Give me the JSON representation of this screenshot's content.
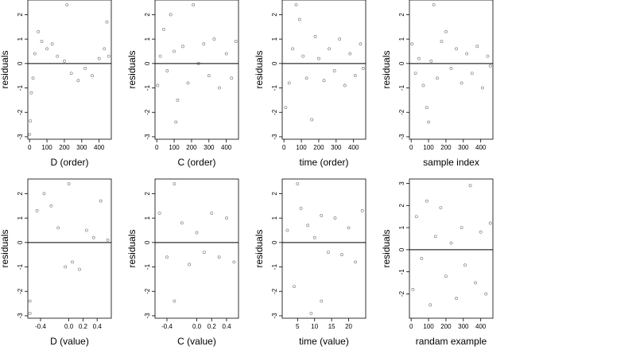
{
  "figure": {
    "background": "#ffffff",
    "point_color": "#555555",
    "line_color": "#000000"
  },
  "chart_data": [
    {
      "type": "scatter",
      "xlabel": "D (order)",
      "ylabel": "residuals",
      "xlim": [
        -10,
        470
      ],
      "ylim": [
        -3.1,
        2.6
      ],
      "xticks": [
        0,
        100,
        200,
        300,
        400
      ],
      "xtick_labels": [
        "0",
        "100",
        "200",
        "300",
        "400"
      ],
      "yticks": [
        -3,
        -2,
        -1,
        0,
        1,
        2
      ],
      "ytick_labels": [
        "-3",
        "-2",
        "-1",
        "0",
        "1",
        "2"
      ],
      "hline": 0,
      "points_summary": {
        "n": 460,
        "x_range": [
          0,
          460
        ],
        "pattern": "ordered residuals: low values near start, mostly 0.0 to 1.2 from 50–200, -1.0 to 0.3 from 200–380, 0 to 1.0 above 400",
        "points": [
          [
            0,
            -2.9
          ],
          [
            5,
            -2.35
          ],
          [
            10,
            -1.2
          ],
          [
            20,
            -0.6
          ],
          [
            30,
            0.4
          ],
          [
            50,
            1.3
          ],
          [
            70,
            0.9
          ],
          [
            100,
            0.6
          ],
          [
            130,
            0.8
          ],
          [
            160,
            0.3
          ],
          [
            200,
            0.1
          ],
          [
            215,
            2.4
          ],
          [
            240,
            -0.4
          ],
          [
            280,
            -0.7
          ],
          [
            320,
            -0.2
          ],
          [
            360,
            -0.5
          ],
          [
            400,
            0.2
          ],
          [
            430,
            0.6
          ],
          [
            445,
            1.7
          ],
          [
            455,
            0.3
          ]
        ]
      }
    },
    {
      "type": "scatter",
      "xlabel": "C (order)",
      "ylabel": "residuals",
      "xlim": [
        -10,
        470
      ],
      "ylim": [
        -3.1,
        2.6
      ],
      "xticks": [
        0,
        100,
        200,
        300,
        400
      ],
      "xtick_labels": [
        "0",
        "100",
        "200",
        "300",
        "400"
      ],
      "yticks": [
        -3,
        -2,
        -1,
        0,
        1,
        2
      ],
      "ytick_labels": [
        "-3",
        "-2",
        "-1",
        "0",
        "1",
        "2"
      ],
      "hline": 0,
      "points_summary": {
        "n": 460,
        "x_range": [
          0,
          460
        ],
        "pattern": "residuals spread roughly -1.3 to 1.5 across order with no clear trend",
        "points": [
          [
            5,
            -0.9
          ],
          [
            20,
            0.3
          ],
          [
            40,
            1.4
          ],
          [
            60,
            -0.3
          ],
          [
            80,
            2.0
          ],
          [
            100,
            0.5
          ],
          [
            110,
            -2.4
          ],
          [
            120,
            -1.5
          ],
          [
            150,
            0.7
          ],
          [
            180,
            -0.8
          ],
          [
            210,
            2.4
          ],
          [
            240,
            0.0
          ],
          [
            270,
            0.8
          ],
          [
            300,
            -0.5
          ],
          [
            330,
            1.0
          ],
          [
            360,
            -1.0
          ],
          [
            400,
            0.4
          ],
          [
            430,
            -0.6
          ],
          [
            455,
            0.9
          ]
        ]
      }
    },
    {
      "type": "scatter",
      "xlabel": "time (order)",
      "ylabel": "residuals",
      "xlim": [
        -10,
        470
      ],
      "ylim": [
        -3.1,
        2.6
      ],
      "xticks": [
        0,
        100,
        200,
        300,
        400
      ],
      "xtick_labels": [
        "0",
        "100",
        "200",
        "300",
        "400"
      ],
      "yticks": [
        -3,
        -2,
        -1,
        0,
        1,
        2
      ],
      "ytick_labels": [
        "-3",
        "-2",
        "-1",
        "0",
        "1",
        "2"
      ],
      "hline": 0,
      "points_summary": {
        "n": 460,
        "x_range": [
          0,
          460
        ],
        "pattern": "residuals around 0 with mild wave pattern, spread -1.5 to 1.5",
        "points": [
          [
            10,
            -1.8
          ],
          [
            30,
            -0.8
          ],
          [
            50,
            0.6
          ],
          [
            70,
            2.4
          ],
          [
            90,
            1.8
          ],
          [
            110,
            0.3
          ],
          [
            130,
            -0.6
          ],
          [
            160,
            -2.3
          ],
          [
            180,
            1.1
          ],
          [
            200,
            0.2
          ],
          [
            230,
            -0.7
          ],
          [
            260,
            0.6
          ],
          [
            290,
            -0.3
          ],
          [
            320,
            1.0
          ],
          [
            350,
            -0.9
          ],
          [
            380,
            0.4
          ],
          [
            410,
            -0.5
          ],
          [
            440,
            0.8
          ],
          [
            455,
            -0.2
          ]
        ]
      }
    },
    {
      "type": "scatter",
      "xlabel": "sample index",
      "ylabel": "residuals",
      "xlim": [
        -10,
        470
      ],
      "ylim": [
        -3.1,
        2.6
      ],
      "xticks": [
        0,
        100,
        200,
        300,
        400
      ],
      "xtick_labels": [
        "0",
        "100",
        "200",
        "300",
        "400"
      ],
      "yticks": [
        -3,
        -2,
        -1,
        0,
        1,
        2
      ],
      "ytick_labels": [
        "-3",
        "-2",
        "-1",
        "0",
        "1",
        "2"
      ],
      "hline": 0,
      "points_summary": {
        "n": 460,
        "x_range": [
          0,
          460
        ],
        "pattern": "residuals by sample index, mostly -1 to 1.2, some outliers below -2 near index 100",
        "points": [
          [
            5,
            0.8
          ],
          [
            25,
            -0.4
          ],
          [
            45,
            0.2
          ],
          [
            70,
            -0.9
          ],
          [
            90,
            -1.8
          ],
          [
            100,
            -2.4
          ],
          [
            115,
            0.1
          ],
          [
            130,
            2.4
          ],
          [
            150,
            -0.6
          ],
          [
            175,
            0.9
          ],
          [
            200,
            1.3
          ],
          [
            230,
            -0.2
          ],
          [
            260,
            0.6
          ],
          [
            290,
            -0.8
          ],
          [
            320,
            0.4
          ],
          [
            350,
            -0.4
          ],
          [
            380,
            0.7
          ],
          [
            410,
            -1.0
          ],
          [
            440,
            0.3
          ],
          [
            455,
            -0.1
          ]
        ]
      }
    },
    {
      "type": "scatter",
      "xlabel": "D (value)",
      "ylabel": "residuals",
      "xlim": [
        -0.58,
        0.6
      ],
      "ylim": [
        -3.1,
        2.6
      ],
      "xticks": [
        -0.4,
        0.0,
        0.2,
        0.4
      ],
      "xtick_labels": [
        "-0.4",
        "0.0",
        "0.2",
        "0.4"
      ],
      "yticks": [
        -3,
        -2,
        -1,
        0,
        1,
        2
      ],
      "ytick_labels": [
        "-3",
        "-2",
        "-1",
        "0",
        "1",
        "2"
      ],
      "hline": 0,
      "points_summary": {
        "n": 460,
        "x_values": [
          -0.55,
          -0.45,
          -0.35,
          -0.25,
          -0.15,
          -0.05,
          0.05,
          0.15,
          0.25,
          0.35,
          0.45,
          0.55
        ],
        "pattern": "points stacked in vertical columns at discrete D values; dense columns near -0.05 to 0.15",
        "points": [
          [
            -0.55,
            -2.9
          ],
          [
            -0.55,
            -2.4
          ],
          [
            -0.45,
            1.3
          ],
          [
            -0.35,
            2.0
          ],
          [
            -0.25,
            1.5
          ],
          [
            -0.15,
            0.6
          ],
          [
            -0.05,
            -1.0
          ],
          [
            0.0,
            2.4
          ],
          [
            0.05,
            -0.8
          ],
          [
            0.15,
            -1.1
          ],
          [
            0.25,
            0.5
          ],
          [
            0.35,
            0.2
          ],
          [
            0.45,
            1.7
          ],
          [
            0.55,
            0.1
          ]
        ]
      }
    },
    {
      "type": "scatter",
      "xlabel": "C (value)",
      "ylabel": "residuals",
      "xlim": [
        -0.56,
        0.56
      ],
      "ylim": [
        -3.1,
        2.6
      ],
      "xticks": [
        -0.4,
        0.0,
        0.2,
        0.4
      ],
      "xtick_labels": [
        "-0.4",
        "0.0",
        "0.2",
        "0.4"
      ],
      "yticks": [
        -3,
        -2,
        -1,
        0,
        1,
        2
      ],
      "ytick_labels": [
        "-3",
        "-2",
        "-1",
        "0",
        "1",
        "2"
      ],
      "hline": 0,
      "points_summary": {
        "n": 460,
        "x_values": [
          -0.5,
          -0.4,
          -0.3,
          -0.2,
          -0.1,
          0.0,
          0.1,
          0.2,
          0.3,
          0.4,
          0.5
        ],
        "pattern": "vertical columns at discrete C values; dense columns near -0.3 and 0.4 to 0.5",
        "points": [
          [
            -0.5,
            1.2
          ],
          [
            -0.4,
            -0.6
          ],
          [
            -0.3,
            2.4
          ],
          [
            -0.3,
            -2.4
          ],
          [
            -0.2,
            0.8
          ],
          [
            -0.1,
            -0.9
          ],
          [
            0.0,
            0.4
          ],
          [
            0.1,
            -0.4
          ],
          [
            0.2,
            1.2
          ],
          [
            0.3,
            -0.6
          ],
          [
            0.4,
            1.0
          ],
          [
            0.5,
            -0.8
          ]
        ]
      }
    },
    {
      "type": "scatter",
      "xlabel": "time (value)",
      "ylabel": "residuals",
      "xlim": [
        0.5,
        25
      ],
      "ylim": [
        -3.1,
        2.6
      ],
      "xticks": [
        5,
        10,
        15,
        20
      ],
      "xtick_labels": [
        "5",
        "10",
        "15",
        "20"
      ],
      "yticks": [
        -3,
        -2,
        -1,
        0,
        1,
        2
      ],
      "ytick_labels": [
        "-3",
        "-2",
        "-1",
        "0",
        "1",
        "2"
      ],
      "hline": 0,
      "points_summary": {
        "n": 460,
        "x_values": [
          2,
          4,
          6,
          8,
          10,
          12,
          14,
          16,
          18,
          20,
          22,
          24
        ],
        "pattern": "vertical columns at discrete time values; dense column near time 12",
        "points": [
          [
            2,
            0.5
          ],
          [
            4,
            -1.8
          ],
          [
            5,
            2.4
          ],
          [
            6,
            1.4
          ],
          [
            8,
            0.7
          ],
          [
            9,
            -2.9
          ],
          [
            10,
            0.2
          ],
          [
            12,
            -2.4
          ],
          [
            12,
            1.1
          ],
          [
            14,
            -0.4
          ],
          [
            16,
            1.0
          ],
          [
            18,
            -0.5
          ],
          [
            20,
            0.6
          ],
          [
            22,
            -0.8
          ],
          [
            24,
            1.3
          ]
        ]
      }
    },
    {
      "type": "scatter",
      "xlabel": "randam example",
      "ylabel": "residuals",
      "xlim": [
        -10,
        470
      ],
      "ylim": [
        -3.1,
        3.2
      ],
      "xticks": [
        0,
        100,
        200,
        300,
        400
      ],
      "xtick_labels": [
        "0",
        "100",
        "200",
        "300",
        "400"
      ],
      "yticks": [
        -2,
        -1,
        0,
        1,
        2,
        3
      ],
      "ytick_labels": [
        "-2",
        "-1",
        "0",
        "1",
        "2",
        "3"
      ],
      "hline": 0,
      "points_summary": {
        "n": 460,
        "x_range": [
          0,
          460
        ],
        "pattern": "random normal noise around 0, spread roughly -2.5 to 2.5 with outliers to 3 and -3",
        "points": [
          [
            10,
            -1.8
          ],
          [
            30,
            1.5
          ],
          [
            60,
            -0.4
          ],
          [
            90,
            2.2
          ],
          [
            110,
            -2.5
          ],
          [
            140,
            0.6
          ],
          [
            170,
            1.9
          ],
          [
            200,
            -1.2
          ],
          [
            230,
            0.3
          ],
          [
            260,
            -2.2
          ],
          [
            290,
            1.0
          ],
          [
            310,
            -0.7
          ],
          [
            340,
            2.9
          ],
          [
            370,
            -1.5
          ],
          [
            400,
            0.8
          ],
          [
            430,
            -2.0
          ],
          [
            455,
            1.2
          ]
        ]
      }
    }
  ]
}
